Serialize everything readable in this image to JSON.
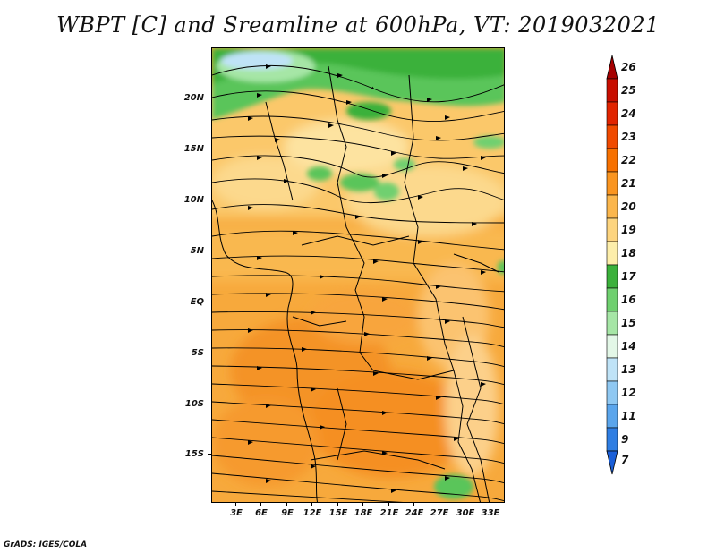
{
  "title": "WBPT [C] and Sreamline at 600hPa, VT: 2019032021",
  "footer": "GrADS: IGES/COLA",
  "lat_labels": [
    "20N",
    "15N",
    "10N",
    "5N",
    "EQ",
    "5S",
    "10S",
    "15S"
  ],
  "lon_labels": [
    "3E",
    "6E",
    "9E",
    "12E",
    "15E",
    "18E",
    "21E",
    "24E",
    "27E",
    "30E",
    "33E"
  ],
  "colorbar": {
    "labels": [
      "26",
      "25",
      "24",
      "23",
      "22",
      "21",
      "20",
      "19",
      "18",
      "17",
      "16",
      "15",
      "14",
      "13",
      "12",
      "11",
      "9",
      "7"
    ],
    "colors": [
      "#a50000",
      "#c80e00",
      "#e12400",
      "#f04a00",
      "#f77100",
      "#fa9520",
      "#fbb64c",
      "#fdd47e",
      "#fdeeaa",
      "#3bb13b",
      "#6fd06f",
      "#a6e6a6",
      "#e3f7e7",
      "#bfe3f7",
      "#8fc8f2",
      "#5aa5ec",
      "#2f7ee3",
      "#1a5fd8"
    ]
  }
}
